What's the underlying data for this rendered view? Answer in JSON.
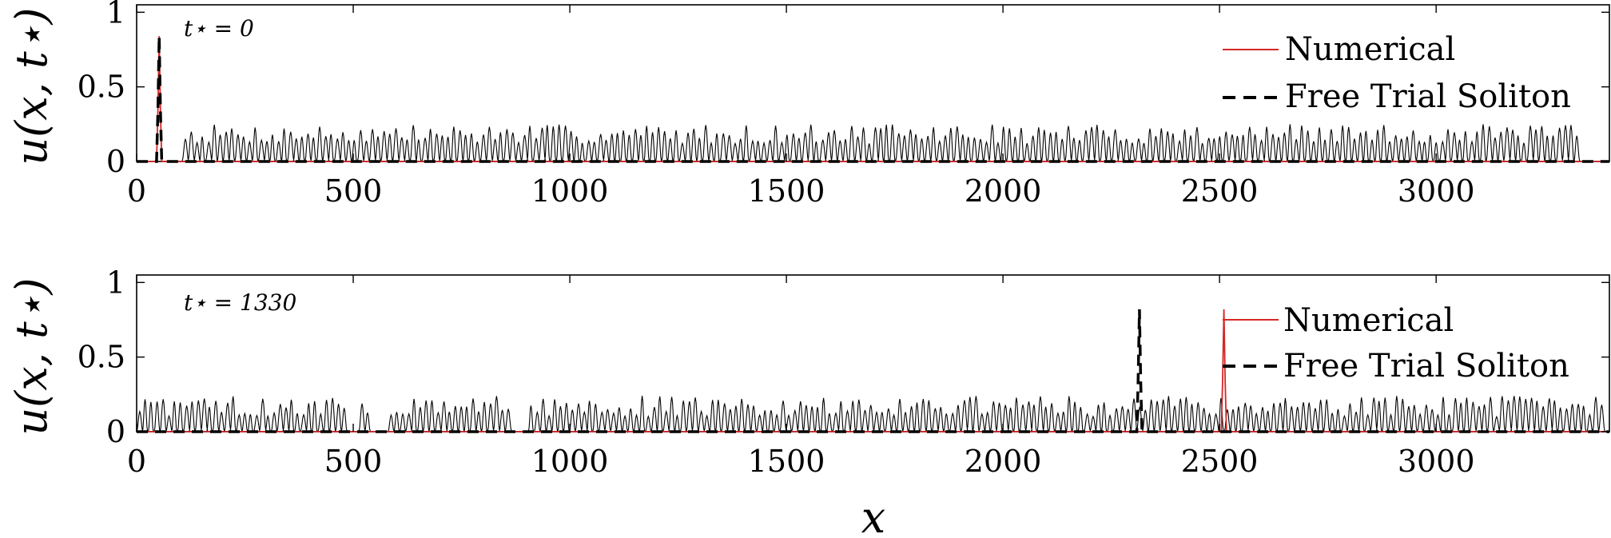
{
  "chart_data": [
    {
      "type": "line",
      "annotation": "t⋆ = 0",
      "ylabel": "u(x, t⋆)",
      "xlabel": "",
      "xlim": [
        0,
        3400
      ],
      "ylim": [
        0,
        1.05
      ],
      "xticks": [
        "0",
        "500",
        "1000",
        "1500",
        "2000",
        "2500",
        "3000"
      ],
      "yticks": [
        "0",
        "0.5",
        "1"
      ],
      "legend_position": "top-right",
      "background_wave": {
        "start": 105,
        "end": 3330,
        "period": 13.5,
        "amplitude_min": 0.12,
        "amplitude_max": 0.25
      },
      "series": [
        {
          "name": "Numerical",
          "color": "#d62728",
          "style": "solid",
          "peak_x": 52,
          "peak_height": 0.84
        },
        {
          "name": "Free Trial Soliton",
          "color": "#000000",
          "style": "dashed",
          "peak_x": 52,
          "peak_height": 0.84
        }
      ]
    },
    {
      "type": "line",
      "annotation": "t⋆ = 1330",
      "ylabel": "u(x, t⋆)",
      "xlabel": "x",
      "xlim": [
        0,
        3400
      ],
      "ylim": [
        0,
        1.05
      ],
      "xticks": [
        "0",
        "500",
        "1000",
        "1500",
        "2000",
        "2500",
        "3000"
      ],
      "yticks": [
        "0",
        "0.5",
        "1"
      ],
      "legend_position": "top-right",
      "background_wave": {
        "start": 0,
        "end": 3380,
        "period": 13.5,
        "amplitude_min": 0.1,
        "amplitude_max": 0.24,
        "gaps": [
          [
            480,
            520
          ],
          [
            540,
            580
          ],
          [
            860,
            900
          ]
        ]
      },
      "series": [
        {
          "name": "Numerical",
          "color": "#d62728",
          "style": "solid",
          "peak_x": 2510,
          "peak_height": 0.82
        },
        {
          "name": "Free Trial Soliton",
          "color": "#000000",
          "style": "dashed",
          "peak_x": 2315,
          "peak_height": 0.82
        }
      ]
    }
  ]
}
